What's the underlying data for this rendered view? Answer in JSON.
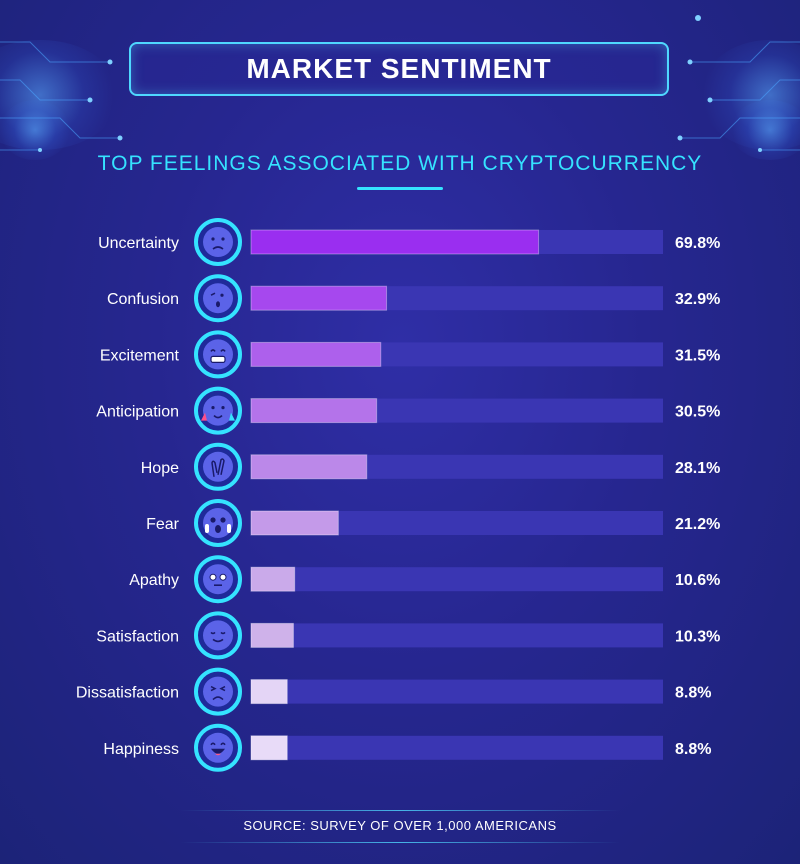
{
  "header": {
    "title": "MARKET SENTIMENT",
    "subtitle": "TOP FEELINGS ASSOCIATED WITH CRYPTOCURRENCY"
  },
  "footer": {
    "source": "SOURCE: SURVEY OF OVER 1,000 AMERICANS"
  },
  "colors": {
    "accent": "#35e3ff",
    "track": "#3a36b3",
    "bar_gradient": [
      "#9a2ef0",
      "#a648ee",
      "#ad60ec",
      "#b473ea",
      "#bb88e9",
      "#c49ae9",
      "#caaaea",
      "#cfb2ea",
      "#e4d5f6",
      "#e8dbf8"
    ]
  },
  "chart_data": {
    "type": "bar",
    "orientation": "horizontal",
    "title": "TOP FEELINGS ASSOCIATED WITH CRYPTOCURRENCY",
    "categories": [
      "Uncertainty",
      "Confusion",
      "Excitement",
      "Anticipation",
      "Hope",
      "Fear",
      "Apathy",
      "Satisfaction",
      "Dissatisfaction",
      "Happiness"
    ],
    "values": [
      69.8,
      32.9,
      31.5,
      30.5,
      28.1,
      21.2,
      10.6,
      10.3,
      8.8,
      8.8
    ],
    "value_labels": [
      "69.8%",
      "32.9%",
      "31.5%",
      "30.5%",
      "28.1%",
      "21.2%",
      "10.6%",
      "10.3%",
      "8.8%",
      "8.8%"
    ],
    "icons": [
      "worried-face-icon",
      "confused-face-icon",
      "grinning-face-icon",
      "party-face-icon",
      "crossed-fingers-icon",
      "screaming-face-icon",
      "neutral-face-icon",
      "relieved-face-icon",
      "tired-face-icon",
      "laughing-face-icon"
    ],
    "xlim": [
      0,
      100
    ],
    "unit": "%",
    "grid": false,
    "legend": "none"
  }
}
